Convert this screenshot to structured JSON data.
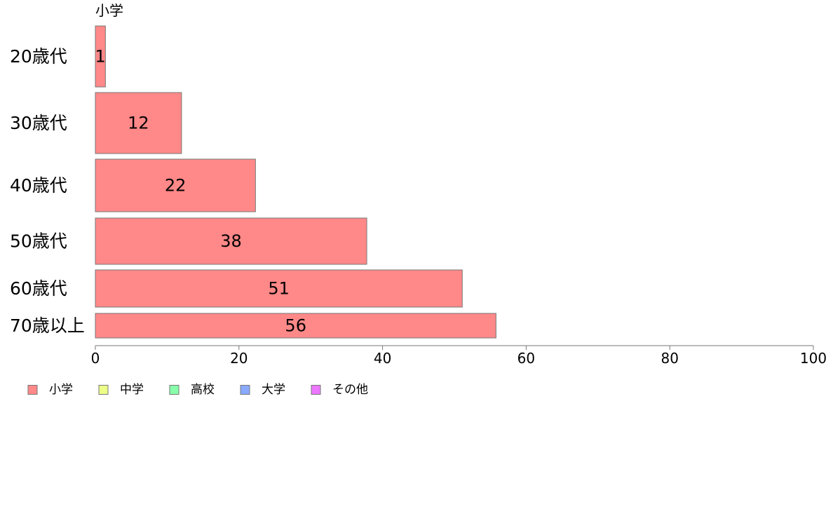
{
  "chart_data": {
    "type": "bar",
    "orientation": "horizontal",
    "stacked": true,
    "series_title": "小学",
    "categories": [
      "20歳代",
      "30歳代",
      "40歳代",
      "50歳代",
      "60歳代",
      "70歳以上"
    ],
    "series": [
      {
        "name": "小学",
        "color": "#ff8888",
        "values": [
          1.4,
          12,
          22.3,
          37.8,
          51.1,
          55.8
        ],
        "labels": [
          "1",
          "12",
          "22",
          "38",
          "51",
          "56"
        ]
      },
      {
        "name": "中学",
        "color": "#eeff88",
        "values": [
          0,
          0,
          0,
          0,
          0,
          0
        ]
      },
      {
        "name": "高校",
        "color": "#88ffaa",
        "values": [
          0,
          0,
          0,
          0,
          0,
          0
        ]
      },
      {
        "name": "大学",
        "color": "#88aaff",
        "values": [
          0,
          0,
          0,
          0,
          0,
          0
        ]
      },
      {
        "name": "その他",
        "color": "#ee77ff",
        "values": [
          0,
          0,
          0,
          0,
          0,
          0
        ]
      }
    ],
    "xlim": [
      0,
      100
    ],
    "xticks": [
      "0",
      "20",
      "40",
      "60",
      "80",
      "100"
    ],
    "grid": false,
    "legend_position": "bottom-left",
    "bar_border_color": "#777777"
  }
}
